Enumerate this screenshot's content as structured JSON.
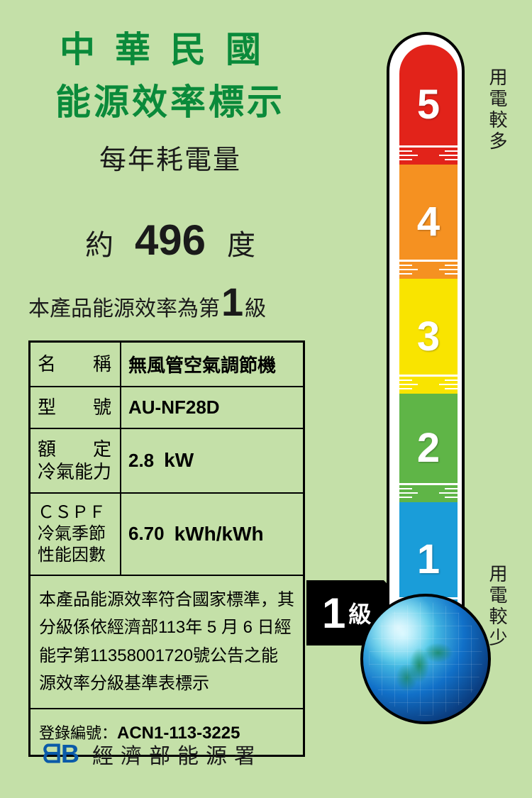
{
  "header": {
    "line1": "中華民國",
    "line2": "能源效率標示",
    "subtitle": "每年耗電量"
  },
  "consumption": {
    "approx": "約",
    "value": "496",
    "unit": "度"
  },
  "level_line": {
    "prefix": "本產品能源效率為第",
    "level": "1",
    "suffix": "級"
  },
  "spec": {
    "name_label": "名　　稱",
    "name_value": "無風管空氣調節機",
    "model_label": "型　　號",
    "model_value": "AU-NF28D",
    "capacity_label": "額　　定\n冷氣能力",
    "capacity_value": "2.8",
    "capacity_unit": "kW",
    "cspf_label": "ＣＳＰＦ\n冷氣季節\n性能因數",
    "cspf_value": "6.70",
    "cspf_unit": "kWh/kWh"
  },
  "note": "本產品能源效率符合國家標準，其分級係依經濟部113年 5 月 6 日經能字第11358001720號公告之能源效率分級基準表標示",
  "registration": {
    "label": "登錄編號：",
    "value": "ACN1-113-3225"
  },
  "footer": {
    "logo": "ᗺB",
    "text": "經濟部能源署"
  },
  "thermometer": {
    "label_top": "用電較多",
    "label_bottom": "用電較少",
    "segments": [
      {
        "num": "5",
        "color": "#e2231a",
        "top_pct": 0,
        "h_pct": 21
      },
      {
        "num": "4",
        "color": "#f59121",
        "top_pct": 21,
        "h_pct": 20
      },
      {
        "num": "3",
        "color": "#f9e400",
        "top_pct": 41,
        "h_pct": 20
      },
      {
        "num": "2",
        "color": "#5fb547",
        "top_pct": 61,
        "h_pct": 19
      },
      {
        "num": "1",
        "color": "#1a9dd9",
        "top_pct": 80,
        "h_pct": 20
      }
    ],
    "tick_count_per_seg": 4
  },
  "arrow": {
    "num": "1",
    "text": "級"
  }
}
